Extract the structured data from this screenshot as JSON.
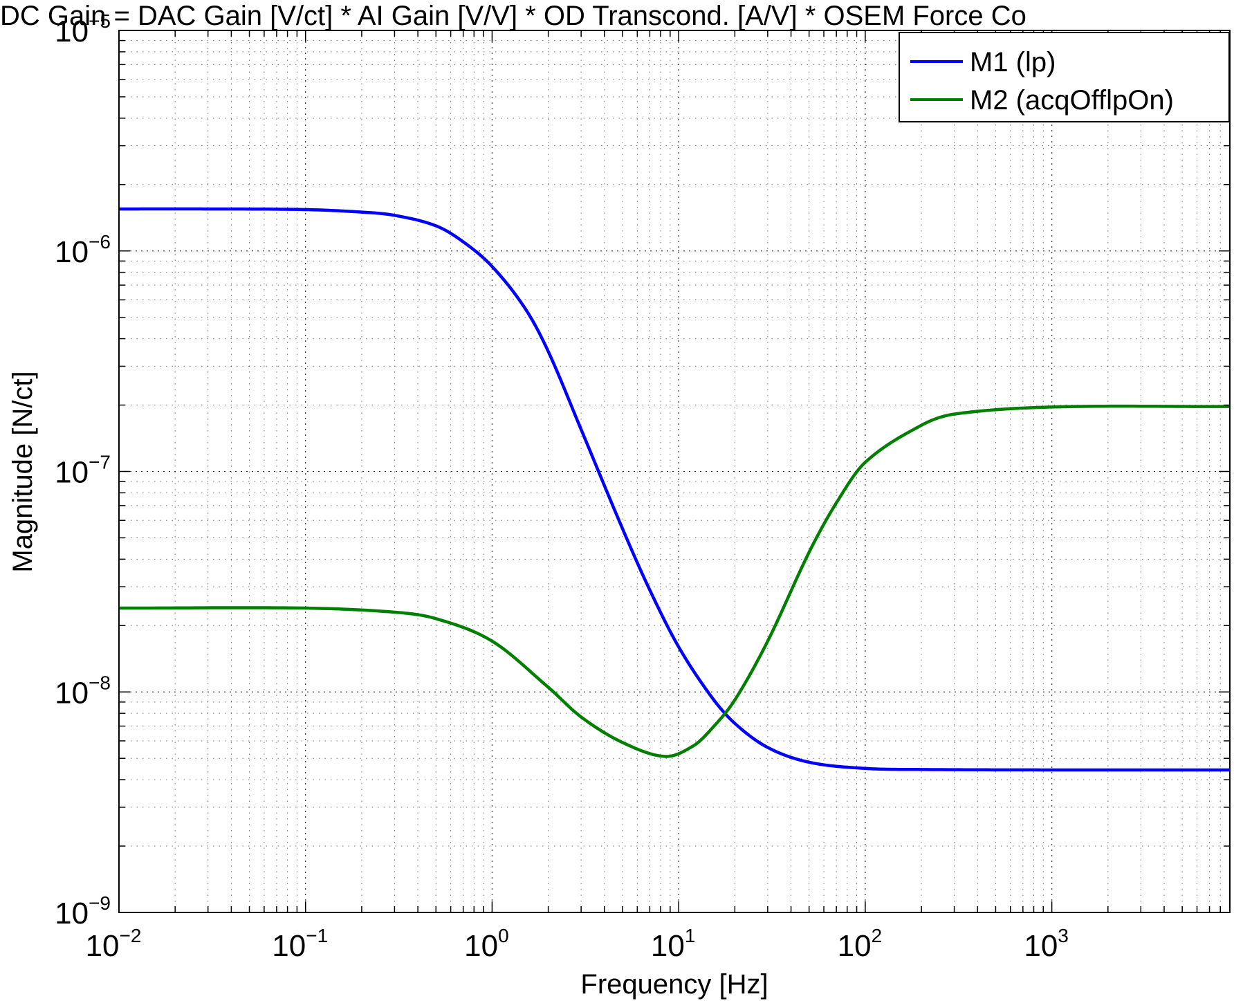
{
  "chart_data": {
    "type": "line",
    "title": "DC Gain = DAC Gain [V/ct] * AI Gain [V/V] * OD Transcond. [A/V] * OSEM Force Co",
    "xlabel": "Frequency [Hz]",
    "ylabel": "Magnitude [N/ct]",
    "x_scale": "log",
    "y_scale": "log",
    "xlim": [
      0.01,
      9000
    ],
    "ylim": [
      1e-09,
      1e-05
    ],
    "grid": true,
    "minor_grid": true,
    "legend_position": "top-right",
    "x_ticks": [
      {
        "base": "10",
        "exp": "−2",
        "value": 0.01
      },
      {
        "base": "10",
        "exp": "−1",
        "value": 0.1
      },
      {
        "base": "10",
        "exp": "0",
        "value": 1
      },
      {
        "base": "10",
        "exp": "1",
        "value": 10
      },
      {
        "base": "10",
        "exp": "2",
        "value": 100
      },
      {
        "base": "10",
        "exp": "3",
        "value": 1000
      }
    ],
    "y_ticks": [
      {
        "base": "10",
        "exp": "−9",
        "value": 1e-09
      },
      {
        "base": "10",
        "exp": "−8",
        "value": 1e-08
      },
      {
        "base": "10",
        "exp": "−7",
        "value": 1e-07
      },
      {
        "base": "10",
        "exp": "−6",
        "value": 1e-06
      },
      {
        "base": "10",
        "exp": "−5",
        "value": 1e-05
      }
    ],
    "series": [
      {
        "name": "M1 (lp)",
        "color": "#0000ff",
        "x": [
          0.01,
          0.03,
          0.1,
          0.2,
          0.3,
          0.5,
          0.7,
          1,
          1.5,
          2,
          3,
          5,
          7,
          10,
          15,
          20,
          30,
          50,
          100,
          200,
          1000,
          9000
        ],
        "y": [
          1.55e-06,
          1.55e-06,
          1.54e-06,
          1.5e-06,
          1.45e-06,
          1.3e-06,
          1.1e-06,
          8.5e-07,
          5.5e-07,
          3.5e-07,
          1.55e-07,
          5.5e-08,
          2.9e-08,
          1.6e-08,
          9.5e-09,
          7.2e-09,
          5.6e-09,
          4.8e-09,
          4.5e-09,
          4.45e-09,
          4.43e-09,
          4.43e-09
        ]
      },
      {
        "name": "M2 (acqOfflpOn)",
        "color": "#007f00",
        "x": [
          0.01,
          0.1,
          0.3,
          0.5,
          1,
          2,
          3,
          5,
          8.5,
          12,
          15,
          20,
          30,
          50,
          70,
          100,
          200,
          300,
          1000,
          9000
        ],
        "y": [
          2.4e-08,
          2.4e-08,
          2.3e-08,
          2.15e-08,
          1.7e-08,
          1.05e-08,
          7.7e-09,
          5.9e-09,
          5.1e-09,
          5.7e-09,
          6.8e-09,
          9.2e-09,
          1.7e-08,
          4.3e-08,
          7.2e-08,
          1.1e-07,
          1.62e-07,
          1.82e-07,
          1.96e-07,
          1.97e-07
        ]
      }
    ]
  }
}
